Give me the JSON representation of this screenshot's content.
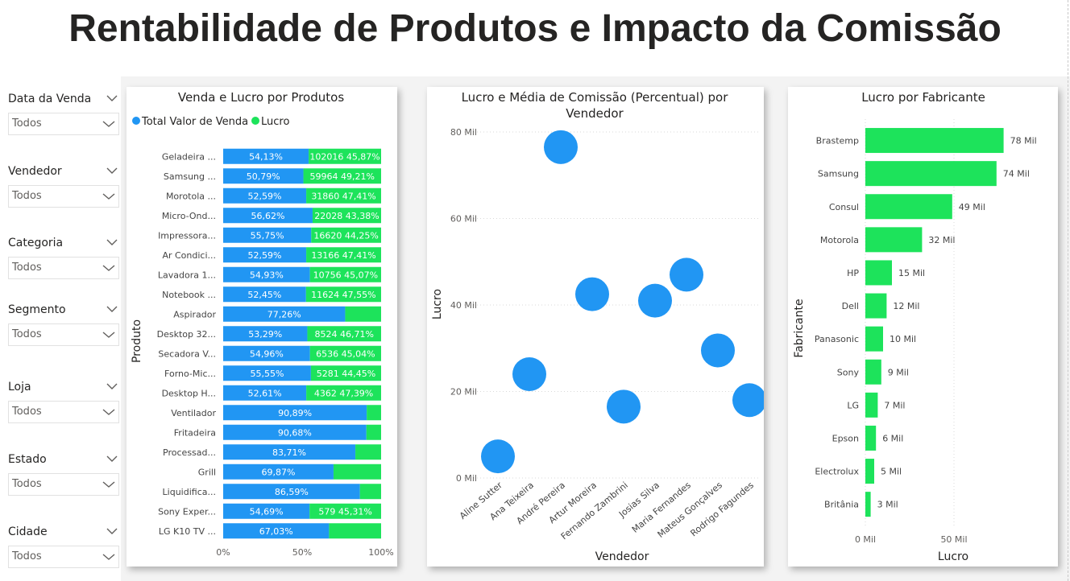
{
  "page": {
    "title": "Rentabilidade de Produtos e Impacto da Comissão"
  },
  "colors": {
    "blue": "#2196F3",
    "green": "#1DE35B",
    "text": "#252423",
    "grid": "#d9d9d9"
  },
  "slicers": [
    {
      "label": "Data da Venda",
      "value": "Todos"
    },
    {
      "label": "Vendedor",
      "value": "Todos"
    },
    {
      "label": "Categoria",
      "value": "Todos"
    },
    {
      "label": "Segmento",
      "value": "Todos"
    },
    {
      "label": "Loja",
      "value": "Todos"
    },
    {
      "label": "Estado",
      "value": "Todos"
    },
    {
      "label": "Cidade",
      "value": "Todos"
    }
  ],
  "chart_data": [
    {
      "type": "bar",
      "stacked": "100%",
      "orientation": "horizontal",
      "title": "Venda e Lucro por Produtos",
      "ylabel": "Produto",
      "xlabel": "",
      "x_ticks": [
        "0%",
        "50%",
        "100%"
      ],
      "legend": {
        "position": "top-left",
        "entries": [
          "Total Valor de Venda",
          "Lucro"
        ]
      },
      "categories": [
        "Geladeira ...",
        "Samsung ...",
        "Morotola ...",
        "Micro-Ond...",
        "Impressora...",
        "Ar Condici...",
        "Lavadora 1...",
        "Notebook ...",
        "Aspirador",
        "Desktop 32...",
        "Secadora V...",
        "Forno-Mic...",
        "Desktop H...",
        "Ventilador",
        "Fritadeira",
        "Processad...",
        "Grill",
        "Liquidifica...",
        "Sony Exper...",
        "LG K10 TV ..."
      ],
      "series": [
        {
          "name": "Total Valor de Venda",
          "values": [
            54.13,
            50.79,
            52.59,
            56.62,
            55.75,
            52.59,
            54.93,
            52.45,
            77.26,
            53.29,
            54.96,
            55.55,
            52.61,
            90.89,
            90.68,
            83.71,
            69.87,
            86.59,
            54.69,
            67.03
          ],
          "labels": [
            "54,13%",
            "50,79%",
            "52,59%",
            "56,62%",
            "55,75%",
            "52,59%",
            "54,93%",
            "52,45%",
            "77,26%",
            "53,29%",
            "54,96%",
            "55,55%",
            "52,61%",
            "90,89%",
            "90,68%",
            "83,71%",
            "69,87%",
            "86,59%",
            "54,69%",
            "67,03%"
          ]
        },
        {
          "name": "Lucro",
          "values": [
            45.87,
            49.21,
            47.41,
            43.38,
            44.25,
            47.41,
            45.07,
            47.55,
            22.74,
            46.71,
            45.04,
            44.45,
            47.39,
            9.11,
            9.32,
            16.29,
            30.13,
            13.41,
            45.31,
            32.97
          ],
          "labels": [
            "102016 45,87%",
            "59964 49,21%",
            "31860 47,41%",
            "22028 43,38%",
            "16620 44,25%",
            "13166 47,41%",
            "10756 45,07%",
            "11624 47,55%",
            "",
            "8524 46,71%",
            "6536 45,04%",
            "5281 44,45%",
            "4362 47,39%",
            "",
            "",
            "",
            "",
            "",
            "579 45,31%",
            ""
          ]
        }
      ]
    },
    {
      "type": "scatter",
      "title": "Lucro e Média de Comissão (Percentual) por Vendedor",
      "title_lines": [
        "Lucro e Média de Comissão (Percentual) por",
        "Vendedor"
      ],
      "xlabel": "Vendedor",
      "ylabel": "Lucro",
      "ylim": [
        0,
        80000
      ],
      "y_ticks": [
        {
          "value": 0,
          "label": "0 Mil"
        },
        {
          "value": 20000,
          "label": "20 Mil"
        },
        {
          "value": 40000,
          "label": "40 Mil"
        },
        {
          "value": 60000,
          "label": "60 Mil"
        },
        {
          "value": 80000,
          "label": "80 Mil"
        }
      ],
      "categories": [
        "Aline Sutter",
        "Ana Teixeira",
        "André Pereira",
        "Artur Moreira",
        "Fernando Zambrini",
        "Josias Silva",
        "Maria Fernandes",
        "Mateus Gonçalves",
        "Rodrigo Fagundes"
      ],
      "points": [
        {
          "x": "Aline Sutter",
          "y": 5000
        },
        {
          "x": "Ana Teixeira",
          "y": 24000
        },
        {
          "x": "André Pereira",
          "y": 76500
        },
        {
          "x": "Artur Moreira",
          "y": 42500
        },
        {
          "x": "Fernando Zambrini",
          "y": 16500
        },
        {
          "x": "Josias Silva",
          "y": 41000
        },
        {
          "x": "Maria Fernandes",
          "y": 47000
        },
        {
          "x": "Mateus Gonçalves",
          "y": 29500
        },
        {
          "x": "Rodrigo Fagundes",
          "y": 18000
        }
      ]
    },
    {
      "type": "bar",
      "orientation": "horizontal",
      "title": "Lucro por Fabricante",
      "xlabel": "Lucro",
      "ylabel": "Fabricante",
      "xlim": [
        0,
        100000
      ],
      "x_ticks": [
        {
          "value": 0,
          "label": "0 Mil"
        },
        {
          "value": 50000,
          "label": "50 Mil"
        }
      ],
      "categories": [
        "Brastemp",
        "Samsung",
        "Consul",
        "Motorola",
        "HP",
        "Dell",
        "Panasonic",
        "Sony",
        "LG",
        "Epson",
        "Electrolux",
        "Britânia"
      ],
      "values": [
        78000,
        74000,
        49000,
        32000,
        15000,
        12000,
        10000,
        9000,
        7000,
        6000,
        5000,
        3000
      ],
      "labels": [
        "78 Mil",
        "74 Mil",
        "49 Mil",
        "32 Mil",
        "15 Mil",
        "12 Mil",
        "10 Mil",
        "9 Mil",
        "7 Mil",
        "6 Mil",
        "5 Mil",
        "3 Mil"
      ]
    }
  ]
}
